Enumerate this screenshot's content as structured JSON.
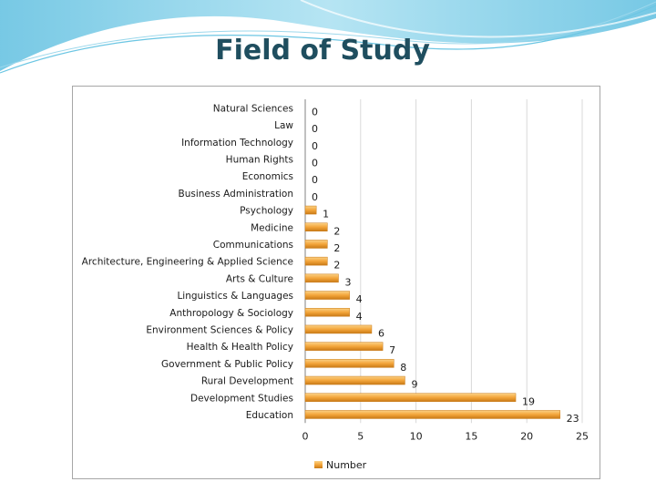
{
  "slide": {
    "title": "Field of Study"
  },
  "colors": {
    "bar_light": "#fbd185",
    "bar_mid": "#f3a53a",
    "bar_dark": "#c97a17",
    "grid": "#d9d9d9",
    "axis": "#808080",
    "text": "#1a1a1a",
    "title": "#1f4e5f",
    "banner": "#7fcde6"
  },
  "chart_data": {
    "type": "bar",
    "orientation": "horizontal",
    "categories": [
      "Natural Sciences",
      "Law",
      "Information Technology",
      "Human Rights",
      "Economics",
      "Business Administration",
      "Psychology",
      "Medicine",
      "Communications",
      "Architecture, Engineering & Applied Science",
      "Arts & Culture",
      "Linguistics & Languages",
      "Anthropology & Sociology",
      "Environment Sciences & Policy",
      "Health & Health Policy",
      "Government & Public Policy",
      "Rural Development",
      "Development Studies",
      "Education"
    ],
    "series": [
      {
        "name": "Number",
        "values": [
          0,
          0,
          0,
          0,
          0,
          0,
          1,
          2,
          2,
          2,
          3,
          4,
          4,
          6,
          7,
          8,
          9,
          19,
          23
        ]
      }
    ],
    "xlim": [
      0,
      25
    ],
    "xticks": [
      "0",
      "5",
      "10",
      "15",
      "20",
      "25"
    ],
    "grid": "vertical",
    "legend": "bottom",
    "data_labels": true
  }
}
